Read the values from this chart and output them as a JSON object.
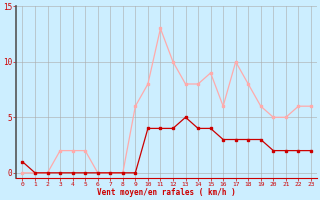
{
  "x": [
    0,
    1,
    2,
    3,
    4,
    5,
    6,
    7,
    8,
    9,
    10,
    11,
    12,
    13,
    14,
    15,
    16,
    17,
    18,
    19,
    20,
    21,
    22,
    23
  ],
  "mean_wind": [
    1,
    0,
    0,
    0,
    0,
    0,
    0,
    0,
    0,
    0,
    4,
    4,
    4,
    5,
    4,
    4,
    3,
    3,
    3,
    3,
    2,
    2,
    2,
    2
  ],
  "gust_wind": [
    0,
    0,
    0,
    2,
    2,
    2,
    0,
    0,
    0,
    6,
    8,
    13,
    10,
    8,
    8,
    9,
    6,
    10,
    8,
    6,
    5,
    5,
    6,
    6
  ],
  "mean_color": "#cc0000",
  "gust_color": "#ffaaaa",
  "bg_color": "#cceeff",
  "grid_color": "#aaaaaa",
  "xlabel": "Vent moyen/en rafales ( km/h )",
  "xlabel_color": "#cc0000",
  "ylim": [
    -0.5,
    15
  ],
  "xlim": [
    -0.5,
    23.5
  ],
  "yticks": [
    0,
    5,
    10,
    15
  ],
  "xticks": [
    0,
    1,
    2,
    3,
    4,
    5,
    6,
    7,
    8,
    9,
    10,
    11,
    12,
    13,
    14,
    15,
    16,
    17,
    18,
    19,
    20,
    21,
    22,
    23
  ],
  "tick_color": "#cc0000",
  "yaxis_color": "#555555",
  "bottom_spine_color": "#cc0000"
}
